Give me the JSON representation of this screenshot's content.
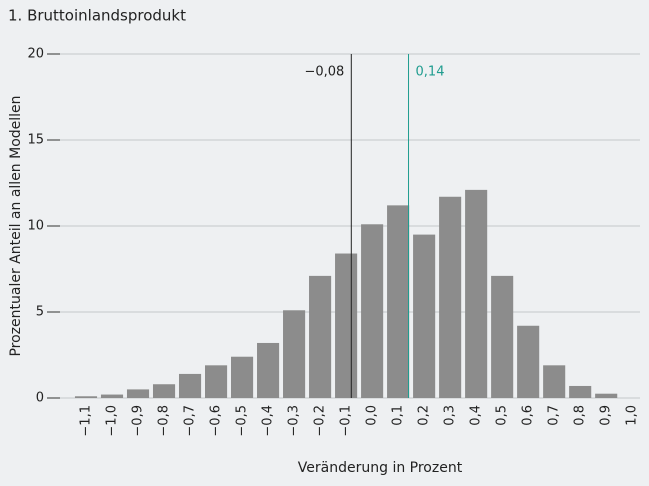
{
  "chart_data": {
    "type": "bar",
    "title": "1. Bruttoinlandsprodukt",
    "x_label": "Veränderung in Prozent",
    "y_label": "Prozentualer Anteil an allen Modellen",
    "x": [
      -1.1,
      -1.0,
      -0.9,
      -0.8,
      -0.7,
      -0.6,
      -0.5,
      -0.4,
      -0.3,
      -0.2,
      -0.1,
      0.0,
      0.1,
      0.2,
      0.3,
      0.4,
      0.5,
      0.6,
      0.7,
      0.8,
      0.9,
      1.0
    ],
    "values": [
      0.1,
      0.2,
      0.5,
      0.8,
      1.4,
      1.9,
      2.4,
      3.2,
      5.1,
      7.1,
      8.4,
      10.1,
      11.2,
      9.5,
      11.7,
      12.1,
      7.1,
      4.2,
      1.9,
      0.7,
      0.25,
      0
    ],
    "color": "#8c8c8c",
    "xlim": [
      -1.2,
      1.03
    ],
    "xticks": [
      {
        "value": -1.1,
        "label": "−1,1"
      },
      {
        "value": -1.0,
        "label": "−1,0"
      },
      {
        "value": -0.9,
        "label": "−0,9"
      },
      {
        "value": -0.8,
        "label": "−0,8"
      },
      {
        "value": -0.7,
        "label": "−0,7"
      },
      {
        "value": -0.6,
        "label": "−0,6"
      },
      {
        "value": -0.5,
        "label": "−0,5"
      },
      {
        "value": -0.4,
        "label": "−0,4"
      },
      {
        "value": -0.3,
        "label": "−0,3"
      },
      {
        "value": -0.2,
        "label": "−0,2"
      },
      {
        "value": -0.1,
        "label": "−0,1"
      },
      {
        "value": 0.0,
        "label": "0,0"
      },
      {
        "value": 0.1,
        "label": "0,1"
      },
      {
        "value": 0.2,
        "label": "0,2"
      },
      {
        "value": 0.3,
        "label": "0,3"
      },
      {
        "value": 0.4,
        "label": "0,4"
      },
      {
        "value": 0.5,
        "label": "0,5"
      },
      {
        "value": 0.6,
        "label": "0,6"
      },
      {
        "value": 0.7,
        "label": "0,7"
      },
      {
        "value": 0.8,
        "label": "0,8"
      },
      {
        "value": 0.9,
        "label": "0,9"
      },
      {
        "value": 1.0,
        "label": "1,0"
      }
    ],
    "ylim": [
      0,
      20
    ],
    "yticks": [
      0,
      5,
      10,
      15,
      20
    ],
    "grid": true,
    "reference_lines": [
      {
        "value": -0.08,
        "label": "−0,08",
        "color": "#222222"
      },
      {
        "value": 0.14,
        "label": "0,14",
        "color": "#1f9c8f"
      }
    ]
  }
}
